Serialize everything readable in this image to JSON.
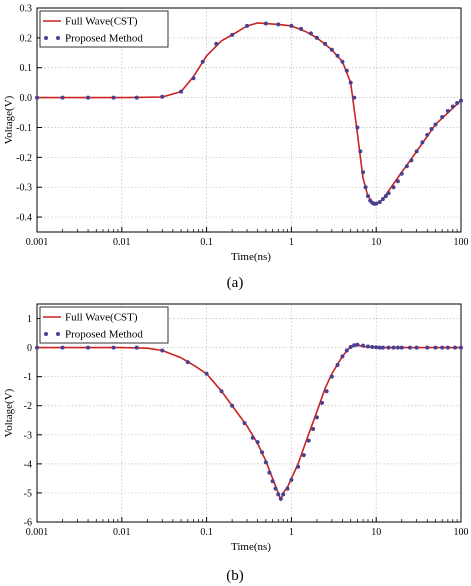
{
  "chart_data": [
    {
      "type": "line",
      "caption": "(a)",
      "xlabel": "Time(ns)",
      "ylabel": "Voltage(V)",
      "xscale": "log",
      "xlim": [
        0.001,
        100
      ],
      "ylim": [
        -0.45,
        0.3
      ],
      "xticks": [
        0.001,
        0.01,
        0.1,
        1,
        10,
        100
      ],
      "xtick_labels": [
        "0.001",
        "0.01",
        "0.1",
        "1",
        "10",
        "100"
      ],
      "yticks": [
        0.3,
        0.2,
        0.1,
        0,
        -0.1,
        -0.2,
        -0.3,
        -0.4
      ],
      "ytick_labels": [
        "0.3",
        "0.2",
        "0.1",
        "0.0",
        "-0.1",
        "-0.2",
        "-0.3",
        "-0.4"
      ],
      "grid": true,
      "legend_position": "top-left",
      "series": [
        {
          "name": "Full Wave(CST)",
          "style": "line",
          "color": "#cc2222",
          "x": [
            0.001,
            0.01,
            0.03,
            0.05,
            0.07,
            0.1,
            0.15,
            0.2,
            0.3,
            0.4,
            0.5,
            0.7,
            1,
            1.5,
            2,
            3,
            4,
            5,
            6,
            7,
            8,
            9,
            10,
            11,
            12,
            15,
            20,
            30,
            50,
            100
          ],
          "y": [
            0,
            0,
            0.002,
            0.02,
            0.07,
            0.14,
            0.19,
            0.21,
            0.24,
            0.25,
            0.248,
            0.245,
            0.24,
            0.22,
            0.2,
            0.16,
            0.12,
            0.05,
            -0.12,
            -0.27,
            -0.33,
            -0.35,
            -0.355,
            -0.35,
            -0.34,
            -0.3,
            -0.25,
            -0.18,
            -0.09,
            -0.01
          ]
        },
        {
          "name": "Proposed Method",
          "style": "markers",
          "color": "#4b3f8f",
          "x": [
            0.001,
            0.002,
            0.004,
            0.008,
            0.015,
            0.03,
            0.05,
            0.07,
            0.09,
            0.13,
            0.2,
            0.3,
            0.5,
            0.7,
            1,
            1.3,
            1.7,
            2,
            2.5,
            3,
            3.5,
            4,
            4.5,
            5,
            5.5,
            6,
            6.5,
            7,
            7.5,
            8,
            8.5,
            9,
            9.5,
            10,
            11,
            12,
            13,
            14,
            16,
            18,
            20,
            23,
            26,
            30,
            35,
            40,
            45,
            50,
            60,
            70,
            80,
            90,
            100
          ],
          "y": [
            0,
            0,
            0,
            0,
            0,
            0.003,
            0.02,
            0.065,
            0.12,
            0.18,
            0.21,
            0.24,
            0.248,
            0.245,
            0.24,
            0.23,
            0.215,
            0.2,
            0.18,
            0.16,
            0.14,
            0.12,
            0.09,
            0.05,
            0.0,
            -0.1,
            -0.18,
            -0.25,
            -0.3,
            -0.33,
            -0.345,
            -0.352,
            -0.356,
            -0.355,
            -0.35,
            -0.34,
            -0.33,
            -0.32,
            -0.3,
            -0.28,
            -0.255,
            -0.23,
            -0.21,
            -0.18,
            -0.15,
            -0.125,
            -0.105,
            -0.09,
            -0.065,
            -0.045,
            -0.03,
            -0.018,
            -0.01
          ]
        }
      ]
    },
    {
      "type": "line",
      "caption": "(b)",
      "xlabel": "Time(ns)",
      "ylabel": "Voltage(V)",
      "xscale": "log",
      "xlim": [
        0.001,
        100
      ],
      "ylim": [
        -6,
        1.5
      ],
      "xticks": [
        0.001,
        0.01,
        0.1,
        1,
        10,
        100
      ],
      "xtick_labels": [
        "0.001",
        "0.01",
        "0.1",
        "1",
        "10",
        "100"
      ],
      "yticks": [
        1,
        0,
        -1,
        -2,
        -3,
        -4,
        -5,
        -6
      ],
      "ytick_labels": [
        "1",
        "0",
        "-1",
        "-2",
        "-3",
        "-4",
        "-5",
        "-6"
      ],
      "grid": true,
      "legend_position": "top-left",
      "series": [
        {
          "name": "Full Wave(CST)",
          "style": "line",
          "color": "#cc2222",
          "x": [
            0.001,
            0.01,
            0.02,
            0.03,
            0.05,
            0.07,
            0.1,
            0.15,
            0.2,
            0.3,
            0.4,
            0.5,
            0.6,
            0.7,
            0.75,
            0.8,
            0.9,
            1,
            1.2,
            1.5,
            2,
            2.5,
            3,
            4,
            5,
            6,
            7,
            10,
            20,
            50,
            100
          ],
          "y": [
            0,
            0,
            -0.02,
            -0.1,
            -0.35,
            -0.6,
            -0.9,
            -1.5,
            -2.0,
            -2.7,
            -3.3,
            -3.9,
            -4.5,
            -5.0,
            -5.25,
            -5.0,
            -4.8,
            -4.5,
            -4.0,
            -3.2,
            -2.2,
            -1.4,
            -0.9,
            -0.3,
            0.05,
            0.1,
            0.03,
            0,
            0,
            0,
            0
          ]
        },
        {
          "name": "Proposed Method",
          "style": "markers",
          "color": "#4b3f8f",
          "x": [
            0.001,
            0.002,
            0.004,
            0.008,
            0.015,
            0.03,
            0.06,
            0.1,
            0.15,
            0.2,
            0.28,
            0.35,
            0.4,
            0.45,
            0.5,
            0.55,
            0.6,
            0.65,
            0.7,
            0.75,
            0.8,
            0.9,
            1,
            1.2,
            1.4,
            1.6,
            1.8,
            2,
            2.3,
            2.6,
            3,
            3.5,
            4,
            4.5,
            5,
            5.5,
            6,
            7,
            8,
            9,
            10,
            11,
            12,
            14,
            16,
            18,
            20,
            25,
            30,
            40,
            50,
            60,
            70,
            85,
            100
          ],
          "y": [
            0,
            0,
            0,
            0,
            0,
            -0.1,
            -0.5,
            -0.9,
            -1.5,
            -2.0,
            -2.6,
            -3.1,
            -3.25,
            -3.6,
            -3.95,
            -4.3,
            -4.6,
            -4.85,
            -5.05,
            -5.2,
            -5.05,
            -4.85,
            -4.55,
            -4.1,
            -3.7,
            -3.2,
            -2.8,
            -2.4,
            -1.9,
            -1.5,
            -1.0,
            -0.6,
            -0.3,
            -0.1,
            0.02,
            0.08,
            0.1,
            0.07,
            0.04,
            0.02,
            0.01,
            0,
            0,
            0,
            0,
            0,
            0,
            0,
            0,
            0,
            0,
            0,
            0,
            0,
            0
          ]
        }
      ]
    }
  ]
}
